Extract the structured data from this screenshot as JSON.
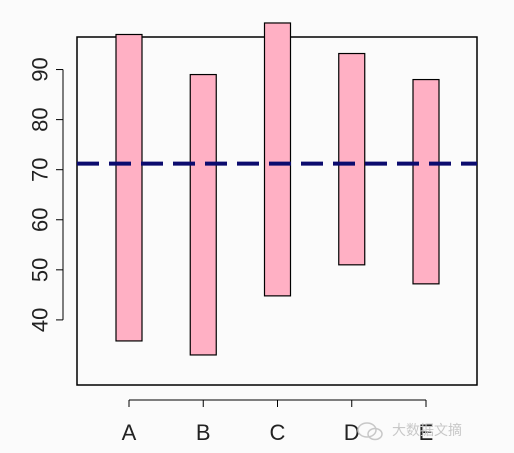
{
  "chart_data": {
    "type": "bar",
    "subtype": "floating-range",
    "categories": [
      "A",
      "B",
      "C",
      "D",
      "E"
    ],
    "ranges": [
      {
        "category": "A",
        "low": 35.8,
        "high": 97.0
      },
      {
        "category": "B",
        "low": 33.0,
        "high": 89.0
      },
      {
        "category": "C",
        "low": 44.8,
        "high": 99.3
      },
      {
        "category": "D",
        "low": 51.0,
        "high": 93.2
      },
      {
        "category": "E",
        "low": 47.2,
        "high": 88.0
      }
    ],
    "reference_line": {
      "y": 71.2,
      "style": "dashed",
      "color": "#0b0b6e"
    },
    "bar_color": "#ffb0c4",
    "bar_edge_color": "#000000",
    "yticks": [
      40,
      50,
      60,
      70,
      80,
      90
    ],
    "ylim": [
      27,
      96.5
    ],
    "title": "",
    "xlabel": "",
    "ylabel": "",
    "grid": false,
    "legend": "none"
  },
  "watermark": {
    "text": "大数据文摘"
  }
}
